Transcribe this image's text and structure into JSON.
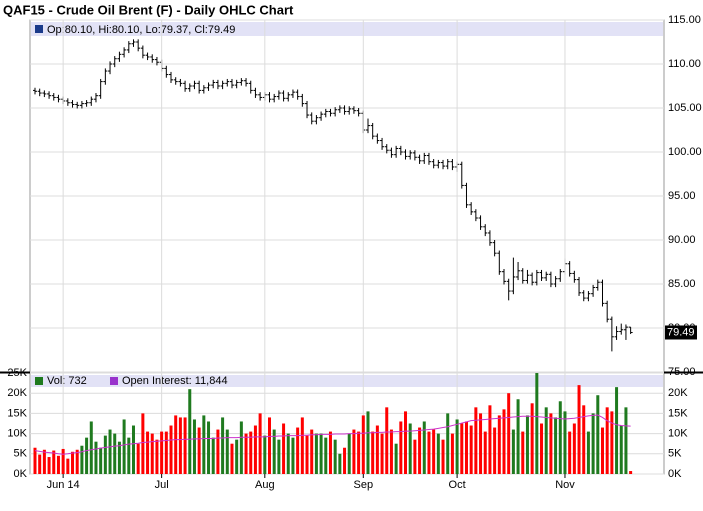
{
  "chart_data": [
    {
      "type": "ohlc",
      "title": "QAF15 - Crude Oil Brent (F) - Daily OHLC Chart",
      "info": "Op:80.10, Hi:80.10, Lo:79.37, Cl:79.49",
      "last_label": "79.49",
      "color": "#000000",
      "grid": true,
      "ylim": [
        75,
        115
      ],
      "yticks": [
        {
          "value": 115,
          "label": "115.00"
        },
        {
          "value": 110,
          "label": "110.00"
        },
        {
          "value": 105,
          "label": "105.00"
        },
        {
          "value": 100,
          "label": "100.00"
        },
        {
          "value": 95,
          "label": "95.00"
        },
        {
          "value": 90,
          "label": "90.00"
        },
        {
          "value": 85,
          "label": "85.00"
        },
        {
          "value": 80,
          "label": "80.00"
        },
        {
          "value": 75,
          "label": "75.00"
        }
      ],
      "open": [
        107.0,
        106.9,
        106.7,
        106.6,
        106.4,
        106.2,
        106.0,
        105.8,
        105.6,
        105.4,
        105.3,
        105.5,
        105.6,
        106.0,
        106.4,
        108.0,
        109.2,
        110.0,
        110.6,
        111.1,
        111.6,
        112.3,
        112.5,
        111.8,
        111.0,
        110.8,
        110.5,
        110.2,
        109.5,
        108.8,
        108.2,
        108.0,
        107.8,
        107.2,
        107.5,
        107.8,
        107.0,
        107.3,
        107.6,
        107.9,
        107.5,
        107.8,
        108.0,
        107.6,
        107.9,
        108.1,
        107.8,
        107.0,
        106.5,
        106.2,
        106.5,
        106.0,
        106.3,
        106.7,
        106.1,
        106.5,
        106.8,
        106.3,
        105.5,
        104.2,
        103.5,
        103.9,
        104.3,
        104.6,
        104.4,
        104.8,
        105.0,
        104.6,
        104.9,
        104.7,
        104.4,
        102.5,
        103.0,
        101.8,
        101.3,
        100.6,
        100.2,
        99.7,
        100.4,
        100.0,
        99.5,
        99.9,
        99.4,
        99.0,
        99.6,
        98.9,
        98.5,
        98.8,
        98.4,
        98.9,
        98.3,
        98.6,
        96.2,
        94.0,
        93.2,
        92.5,
        91.5,
        90.8,
        89.7,
        88.5,
        86.4,
        85.3,
        84.2,
        85.8,
        86.5,
        85.4,
        86.0,
        85.2,
        86.3,
        85.7,
        86.1,
        85.0,
        85.6,
        86.4,
        87.3,
        86.2,
        85.5,
        84.0,
        83.4,
        83.9,
        84.6,
        85.2,
        82.8,
        81.0,
        79.0,
        79.6,
        79.8,
        80.1
      ],
      "high": [
        107.3,
        107.2,
        107.0,
        106.9,
        106.7,
        106.5,
        106.3,
        106.1,
        105.9,
        105.7,
        105.8,
        105.9,
        106.3,
        106.7,
        108.3,
        109.5,
        110.3,
        110.9,
        111.4,
        111.9,
        112.6,
        112.8,
        112.8,
        112.1,
        111.3,
        111.1,
        110.8,
        110.5,
        109.8,
        109.1,
        108.5,
        108.3,
        108.1,
        107.8,
        108.1,
        108.1,
        107.6,
        107.9,
        108.2,
        108.2,
        108.1,
        108.3,
        108.3,
        108.2,
        108.4,
        108.4,
        108.1,
        107.3,
        106.8,
        106.8,
        106.8,
        106.6,
        107.0,
        107.0,
        106.8,
        107.1,
        107.1,
        106.6,
        105.8,
        104.5,
        104.2,
        104.6,
        104.9,
        104.9,
        105.1,
        105.3,
        105.3,
        105.2,
        105.2,
        105.0,
        104.7,
        103.8,
        103.3,
        102.1,
        101.6,
        100.9,
        100.5,
        100.7,
        100.7,
        100.3,
        100.2,
        100.2,
        99.7,
        99.9,
        99.9,
        99.2,
        99.1,
        99.1,
        99.2,
        99.2,
        98.9,
        98.9,
        96.5,
        94.3,
        93.5,
        92.8,
        91.8,
        91.1,
        90.0,
        88.8,
        86.7,
        85.6,
        88.0,
        87.5,
        86.8,
        86.6,
        86.3,
        86.6,
        86.6,
        86.4,
        86.4,
        85.9,
        86.7,
        87.9,
        87.6,
        86.5,
        85.8,
        84.3,
        84.2,
        84.9,
        85.5,
        85.5,
        83.1,
        81.3,
        80.2,
        80.5,
        80.4,
        80.1
      ],
      "low": [
        106.6,
        106.4,
        106.3,
        106.1,
        105.9,
        105.7,
        105.5,
        105.3,
        105.1,
        105.0,
        105.0,
        105.2,
        105.3,
        105.7,
        106.1,
        107.7,
        108.9,
        109.7,
        110.3,
        110.8,
        111.3,
        112.0,
        111.5,
        110.7,
        110.5,
        110.2,
        109.9,
        109.2,
        108.5,
        107.9,
        107.7,
        107.5,
        106.9,
        106.9,
        107.2,
        106.7,
        106.7,
        107.0,
        107.3,
        107.2,
        107.2,
        107.5,
        107.3,
        107.3,
        107.6,
        107.5,
        106.7,
        106.2,
        105.9,
        105.9,
        105.7,
        105.7,
        106.0,
        105.8,
        105.8,
        106.2,
        106.0,
        105.2,
        103.9,
        103.2,
        103.2,
        103.6,
        104.0,
        104.1,
        104.1,
        104.5,
        104.3,
        104.3,
        104.4,
        104.1,
        102.2,
        102.2,
        101.5,
        101.0,
        100.3,
        99.9,
        99.4,
        99.4,
        99.7,
        99.2,
        99.2,
        99.1,
        98.7,
        98.7,
        98.6,
        98.2,
        98.2,
        98.1,
        98.1,
        98.0,
        97.8,
        95.9,
        93.7,
        92.9,
        92.2,
        91.2,
        90.5,
        89.4,
        88.2,
        86.1,
        85.0,
        83.2,
        83.9,
        85.5,
        85.1,
        85.1,
        84.9,
        84.9,
        85.4,
        85.4,
        84.7,
        84.7,
        85.3,
        86.1,
        85.9,
        85.2,
        83.7,
        83.1,
        83.1,
        83.6,
        84.3,
        82.5,
        80.7,
        77.4,
        78.7,
        79.3,
        78.7,
        79.37
      ],
      "close": [
        106.9,
        106.7,
        106.6,
        106.4,
        106.2,
        106.0,
        105.8,
        105.6,
        105.4,
        105.3,
        105.5,
        105.6,
        106.0,
        106.4,
        108.0,
        109.2,
        110.0,
        110.6,
        111.1,
        111.6,
        112.3,
        112.5,
        111.8,
        111.0,
        110.8,
        110.5,
        110.2,
        109.5,
        108.8,
        108.2,
        108.0,
        107.8,
        107.2,
        107.5,
        107.8,
        107.0,
        107.3,
        107.6,
        107.9,
        107.5,
        107.8,
        108.0,
        107.6,
        107.9,
        108.1,
        107.8,
        107.0,
        106.5,
        106.2,
        106.5,
        106.0,
        106.3,
        106.7,
        106.1,
        106.5,
        106.8,
        106.3,
        105.5,
        104.2,
        103.5,
        103.9,
        104.3,
        104.6,
        104.4,
        104.8,
        105.0,
        104.6,
        104.9,
        104.7,
        104.4,
        102.5,
        103.0,
        101.8,
        101.3,
        100.6,
        100.2,
        99.7,
        100.4,
        100.0,
        99.5,
        99.9,
        99.4,
        99.0,
        99.6,
        98.9,
        98.5,
        98.8,
        98.4,
        98.9,
        98.3,
        98.6,
        96.2,
        94.0,
        93.2,
        92.5,
        91.5,
        90.8,
        89.7,
        88.5,
        86.4,
        85.3,
        84.2,
        85.8,
        86.5,
        85.4,
        86.0,
        85.2,
        86.3,
        85.7,
        86.1,
        85.0,
        85.6,
        86.4,
        87.3,
        86.2,
        85.5,
        84.0,
        83.4,
        83.9,
        84.6,
        85.2,
        82.8,
        81.0,
        79.0,
        79.6,
        79.8,
        80.1,
        79.49
      ]
    },
    {
      "type": "volume",
      "grid": true,
      "up_color": "#1f7a1f",
      "down_color": "#ff0000",
      "categories": [
        null,
        null,
        null,
        null,
        null,
        null,
        "Jun 14",
        null,
        null,
        null,
        null,
        null,
        null,
        null,
        null,
        null,
        null,
        null,
        null,
        null,
        null,
        null,
        null,
        null,
        null,
        null,
        null,
        "Jul",
        null,
        null,
        null,
        null,
        null,
        null,
        null,
        null,
        null,
        null,
        null,
        null,
        null,
        null,
        null,
        null,
        null,
        null,
        null,
        null,
        null,
        "Aug",
        null,
        null,
        null,
        null,
        null,
        null,
        null,
        null,
        null,
        null,
        null,
        null,
        null,
        null,
        null,
        null,
        null,
        null,
        null,
        null,
        "Sep",
        null,
        null,
        null,
        null,
        null,
        null,
        null,
        null,
        null,
        null,
        null,
        null,
        null,
        null,
        null,
        null,
        null,
        null,
        null,
        "Oct",
        null,
        null,
        null,
        null,
        null,
        null,
        null,
        null,
        null,
        null,
        null,
        null,
        null,
        null,
        null,
        null,
        null,
        null,
        null,
        null,
        null,
        null,
        "Nov",
        null,
        null,
        null,
        null,
        null,
        null,
        null,
        null,
        null,
        null,
        null,
        null,
        null,
        null
      ],
      "ylim": [
        0,
        25000
      ],
      "yticks": [
        {
          "value": 25000,
          "label": "25K"
        },
        {
          "value": 20000,
          "label": "20K"
        },
        {
          "value": 15000,
          "label": "15K"
        },
        {
          "value": 10000,
          "label": "10K"
        },
        {
          "value": 5000,
          "label": "5K"
        },
        {
          "value": 0,
          "label": "0K"
        }
      ],
      "y2ticks": [
        {
          "value": 20000,
          "label": "20K"
        },
        {
          "value": 15000,
          "label": "15K"
        },
        {
          "value": 10000,
          "label": "10K"
        },
        {
          "value": 5000,
          "label": "5K"
        },
        {
          "value": 0,
          "label": "0K"
        }
      ],
      "series": [
        {
          "name": "Vol: 732",
          "color": "#1f7a1f",
          "values": [
            6500,
            4800,
            6000,
            4200,
            5800,
            4500,
            6200,
            3800,
            5500,
            6000,
            7000,
            9000,
            13000,
            8000,
            6500,
            9500,
            11000,
            10000,
            8000,
            13500,
            9000,
            12000,
            7500,
            15000,
            10500,
            10000,
            8500,
            10500,
            10500,
            12000,
            14500,
            14000,
            14000,
            21000,
            13500,
            11500,
            14500,
            13000,
            9000,
            11000,
            14000,
            11000,
            7500,
            8500,
            13000,
            10000,
            10500,
            12000,
            15000,
            9500,
            14000,
            11000,
            8500,
            12500,
            10000,
            9000,
            11500,
            14000,
            9500,
            11000,
            10000,
            10000,
            9000,
            10500,
            8500,
            5000,
            6500,
            10000,
            11000,
            10500,
            14500,
            15500,
            10500,
            12000,
            10000,
            16500,
            11000,
            7500,
            13000,
            15500,
            12500,
            8500,
            11500,
            13000,
            10500,
            11000,
            10000,
            8500,
            15000,
            10000,
            13500,
            12500,
            13000,
            12000,
            16500,
            15000,
            10500,
            17000,
            11500,
            14500,
            16000,
            20000,
            11000,
            18500,
            10500,
            14500,
            17500,
            25000,
            12500,
            16500,
            15000,
            14000,
            18000,
            15500,
            10500,
            12500,
            22000,
            17000,
            10500,
            15000,
            19500,
            11500,
            16500,
            15500,
            21500,
            12000,
            16500,
            732
          ]
        },
        {
          "name": "Open Interest: 11,844",
          "color": "#cc33cc",
          "values": [
            5800,
            5600,
            5400,
            5300,
            5200,
            5000,
            4900,
            5000,
            5200,
            5300,
            5500,
            5800,
            6000,
            6200,
            6400,
            6600,
            6700,
            6900,
            7000,
            7200,
            7400,
            7500,
            7600,
            7800,
            7900,
            8000,
            8100,
            8200,
            8300,
            8400,
            8500,
            8500,
            8600,
            8600,
            8700,
            8700,
            8800,
            8800,
            8800,
            8900,
            8900,
            9000,
            9000,
            9000,
            9100,
            9100,
            9100,
            9200,
            9200,
            9200,
            9300,
            9300,
            9400,
            9400,
            9500,
            9500,
            9500,
            9600,
            9600,
            9700,
            9700,
            9800,
            9800,
            9800,
            9900,
            9900,
            9900,
            10000,
            10000,
            10100,
            10100,
            10200,
            10200,
            10300,
            10300,
            10400,
            10400,
            10500,
            10500,
            10600,
            10600,
            10700,
            10800,
            10900,
            11000,
            11100,
            11300,
            11500,
            11700,
            12000,
            12300,
            12600,
            12900,
            13200,
            13300,
            13400,
            13500,
            13600,
            13700,
            13800,
            13900,
            14000,
            14100,
            14200,
            14300,
            14300,
            14300,
            14200,
            14100,
            14000,
            13900,
            13800,
            13700,
            13600,
            13700,
            13800,
            14000,
            14200,
            14400,
            14500,
            14600,
            14000,
            13200,
            12600,
            12200,
            12000,
            11900,
            11844
          ]
        }
      ]
    }
  ]
}
